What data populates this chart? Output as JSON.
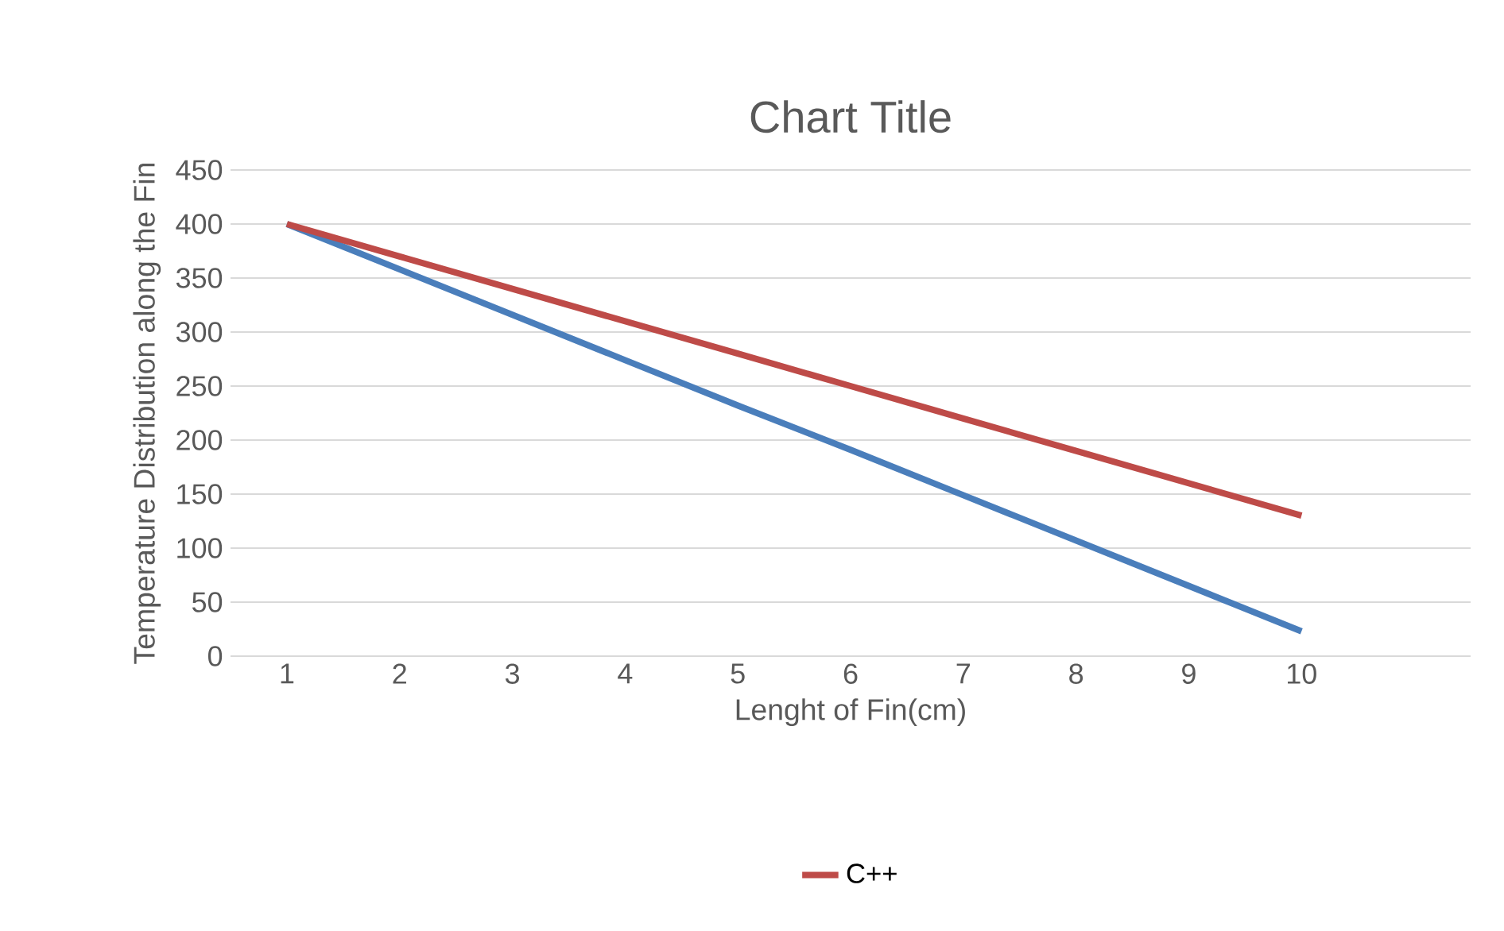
{
  "chart_data": {
    "type": "line",
    "title": "Chart Title",
    "xlabel": "Lenght of Fin(cm)",
    "ylabel": "Temperature Distribution along the Fin",
    "categories": [
      "1",
      "2",
      "3",
      "4",
      "5",
      "6",
      "7",
      "8",
      "9",
      "10",
      null
    ],
    "series": [
      {
        "color": "#4a7ebb",
        "values": [
          400,
          358,
          316,
          274,
          232,
          191,
          149,
          107,
          65,
          23,
          null
        ]
      },
      {
        "name": "C++",
        "color": "#be4b48",
        "values": [
          400,
          370,
          340,
          310,
          280,
          250,
          220,
          190,
          160,
          130,
          null
        ]
      }
    ],
    "ylim": [
      0,
      450
    ],
    "yticks": [
      0,
      50,
      100,
      150,
      200,
      250,
      300,
      350,
      400,
      450
    ],
    "grid": "y",
    "legend": "bottom",
    "marker": "none",
    "line_style": "solid"
  }
}
